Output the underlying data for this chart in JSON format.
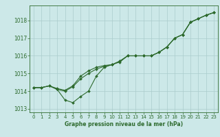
{
  "hours": [
    0,
    1,
    2,
    3,
    4,
    5,
    6,
    7,
    8,
    9,
    10,
    11,
    12,
    13,
    14,
    15,
    16,
    17,
    18,
    19,
    20,
    21,
    22,
    23
  ],
  "dip_y": [
    1014.2,
    1014.2,
    1014.3,
    1014.1,
    1013.5,
    1013.35,
    1013.7,
    1014.0,
    1014.85,
    1015.35,
    1015.5,
    1015.7,
    1016.0,
    1016.0,
    1016.0,
    1016.0,
    1016.2,
    1016.5,
    1017.0,
    1017.2,
    1017.9,
    1018.1,
    1018.3,
    1018.45
  ],
  "upper_y": [
    1014.2,
    1014.2,
    1014.3,
    1014.15,
    1014.05,
    1014.3,
    1014.85,
    1015.15,
    1015.35,
    1015.45,
    1015.5,
    1015.7,
    1016.0,
    1016.0,
    1016.0,
    1016.0,
    1016.2,
    1016.5,
    1017.0,
    1017.2,
    1017.9,
    1018.1,
    1018.3,
    1018.45
  ],
  "mid_y": [
    1014.2,
    1014.2,
    1014.3,
    1014.1,
    1014.0,
    1014.25,
    1014.7,
    1015.0,
    1015.25,
    1015.4,
    1015.5,
    1015.65,
    1016.0,
    1016.0,
    1016.0,
    1016.0,
    1016.2,
    1016.5,
    1017.0,
    1017.2,
    1017.9,
    1018.1,
    1018.3,
    1018.45
  ],
  "ylim": [
    1012.8,
    1018.85
  ],
  "yticks": [
    1013,
    1014,
    1015,
    1016,
    1017,
    1018
  ],
  "xlim": [
    -0.5,
    23.5
  ],
  "xticks": [
    0,
    1,
    2,
    3,
    4,
    5,
    6,
    7,
    8,
    9,
    10,
    11,
    12,
    13,
    14,
    15,
    16,
    17,
    18,
    19,
    20,
    21,
    22,
    23
  ],
  "line_color": "#2d6a2d",
  "bg_color": "#cce8e8",
  "grid_color": "#aacccc",
  "xlabel": "Graphe pression niveau de la mer (hPa)",
  "xlabel_color": "#2d6a2d",
  "tick_color": "#2d6a2d",
  "marker_size": 2.0,
  "line_width": 0.8,
  "tick_fontsize": 5.0,
  "xlabel_fontsize": 5.5
}
